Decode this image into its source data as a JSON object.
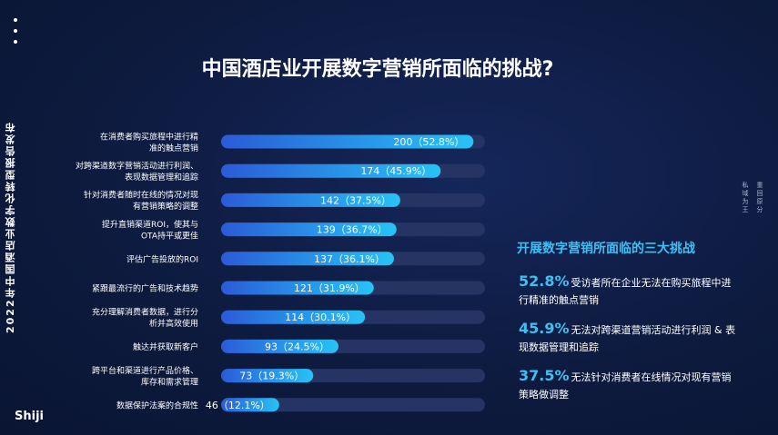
{
  "page": {
    "title": "中国酒店业开展数字营销所面临的挑战?",
    "side_text": "2022年中国酒店业数字化转型报告发布",
    "logo": "Shiji",
    "right_side": [
      "重回原分",
      "私域为王"
    ]
  },
  "summary": {
    "title": "开展数字营销所面临的三大挑战",
    "points": [
      {
        "pct": "52.8%",
        "text": "受访者所在企业无法在购买旅程中进行精准的触点营销"
      },
      {
        "pct": "45.9%",
        "text": "无法对跨渠道营销活动进行利润 & 表现数据管理和追踪"
      },
      {
        "pct": "37.5%",
        "text": "无法针对消费者在线情况对现有营销策略做调整"
      }
    ]
  },
  "chart_data": {
    "type": "bar",
    "orientation": "horizontal",
    "title": "中国酒店业开展数字营销所面临的挑战?",
    "categories": [
      [
        "在消费者购买旅程中进行精",
        "准的触点营销"
      ],
      [
        "对跨渠道数字营销活动进行利润、",
        "表现数据管理和追踪"
      ],
      [
        "针对消费者随时在线的情况对现",
        "有营销策略的调整"
      ],
      [
        "提升直销渠道ROI，使其与",
        "OTA持平或更佳"
      ],
      [
        "评估广告投放的ROI"
      ],
      [
        "紧跟最流行的广告和技术趋势"
      ],
      [
        "充分理解消费者数据，进行分",
        "析并高效使用"
      ],
      [
        "触达并获取新客户"
      ],
      [
        "跨平台和渠道进行产品价格、",
        "库存和需求管理"
      ],
      [
        "数据保护法案的合规性"
      ]
    ],
    "values": [
      200,
      174,
      142,
      139,
      137,
      121,
      114,
      93,
      73,
      46
    ],
    "data_labels": [
      "200（52.8%）",
      "174（45.9%）",
      "142（37.5%）",
      "139（36.7%）",
      "137（36.1%）",
      "121（31.9%）",
      "114（30.1%）",
      "93（24.5%）",
      "73（19.3%）",
      "46（12.1%）"
    ],
    "xlim": [
      0,
      210
    ],
    "colors": {
      "bar_start": "#2a5bd8",
      "bar_end": "#27c3f6",
      "track": "#253463"
    }
  }
}
